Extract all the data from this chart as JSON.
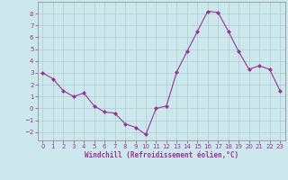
{
  "x": [
    0,
    1,
    2,
    3,
    4,
    5,
    6,
    7,
    8,
    9,
    10,
    11,
    12,
    13,
    14,
    15,
    16,
    17,
    18,
    19,
    20,
    21,
    22,
    23
  ],
  "y": [
    3.0,
    2.5,
    1.5,
    1.0,
    1.3,
    0.2,
    -0.3,
    -0.4,
    -1.3,
    -1.6,
    -2.2,
    0.0,
    0.2,
    3.1,
    4.8,
    6.5,
    8.2,
    8.1,
    6.5,
    4.8,
    3.3,
    3.6,
    3.3,
    1.5
  ],
  "line_color": "#993399",
  "marker": "D",
  "marker_size": 2,
  "bg_color": "#cce8ec",
  "grid_color": "#aacccc",
  "xlabel": "Windchill (Refroidissement éolien,°C)",
  "xlabel_color": "#993399",
  "tick_color": "#993399",
  "xlim": [
    -0.5,
    23.5
  ],
  "ylim": [
    -2.7,
    9.0
  ],
  "yticks": [
    -2,
    -1,
    0,
    1,
    2,
    3,
    4,
    5,
    6,
    7,
    8
  ],
  "xticks": [
    0,
    1,
    2,
    3,
    4,
    5,
    6,
    7,
    8,
    9,
    10,
    11,
    12,
    13,
    14,
    15,
    16,
    17,
    18,
    19,
    20,
    21,
    22,
    23
  ]
}
